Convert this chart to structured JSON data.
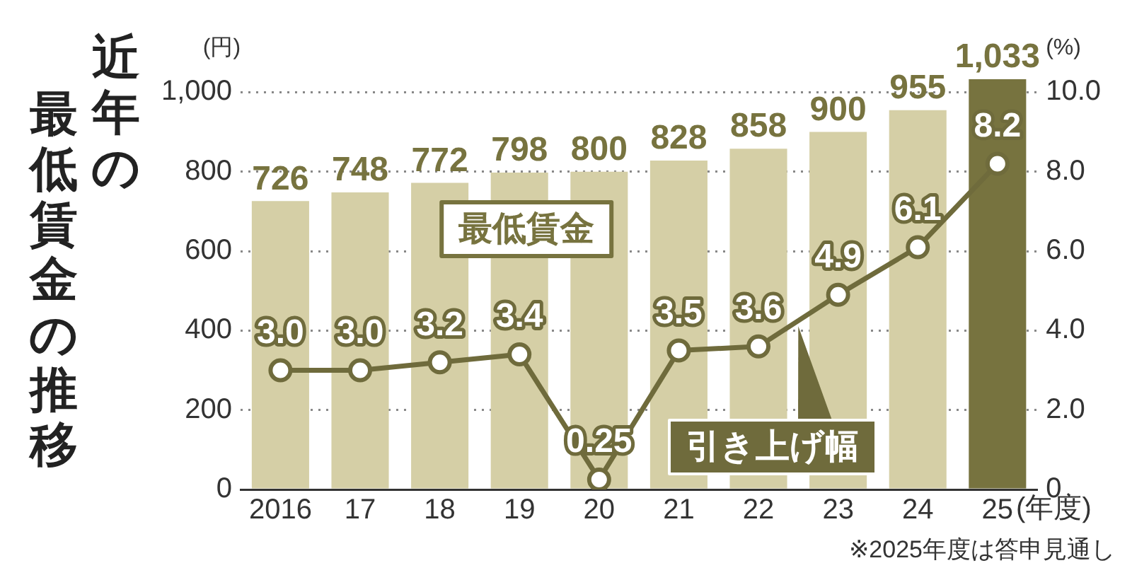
{
  "chart_data": {
    "type": "bar",
    "title": "近年の最低賃金の推移",
    "ylabel": "(円)",
    "y2label": "(%)",
    "xlabel": "(年度)",
    "annotations": [
      "※2025年度は答申見通し"
    ],
    "categories": [
      "2016",
      "17",
      "18",
      "19",
      "20",
      "21",
      "22",
      "23",
      "24",
      "25"
    ],
    "series": [
      {
        "name": "最低賃金",
        "colors": [
          "#d5cfa6",
          "#d5cfa6",
          "#d5cfa6",
          "#d5cfa6",
          "#d5cfa6",
          "#d5cfa6",
          "#d5cfa6",
          "#d5cfa6",
          "#d5cfa6",
          "#77733f"
        ],
        "values": [
          726,
          748,
          772,
          798,
          800,
          828,
          858,
          900,
          955,
          1033
        ],
        "value_labels": [
          "726",
          "748",
          "772",
          "798",
          "800",
          "828",
          "858",
          "900",
          "955",
          "1,033"
        ]
      },
      {
        "name": "引き上げ幅",
        "type": "line",
        "axis": "y2",
        "color": "#6f6b3c",
        "values": [
          3.0,
          3.0,
          3.2,
          3.4,
          0.25,
          3.5,
          3.6,
          4.9,
          6.1,
          8.2
        ],
        "value_labels": [
          "3.0",
          "3.0",
          "3.2",
          "3.4",
          "0.25",
          "3.5",
          "3.6",
          "4.9",
          "6.1",
          "8.2"
        ]
      }
    ],
    "ylim": [
      0,
      1040
    ],
    "yticks": [
      0,
      200,
      400,
      600,
      800,
      {
        "value": 1000,
        "label": "1,000"
      }
    ],
    "y2lim": [
      0,
      10.4
    ],
    "y2ticks": [
      0,
      {
        "value": 2,
        "label": "2.0"
      },
      {
        "value": 4,
        "label": "4.0"
      },
      {
        "value": 6,
        "label": "6.0"
      },
      {
        "value": 8,
        "label": "8.0"
      },
      {
        "value": 10,
        "label": "10.0"
      }
    ],
    "grid": "y",
    "legend": false,
    "marker": "circle",
    "line_style": "solid"
  }
}
